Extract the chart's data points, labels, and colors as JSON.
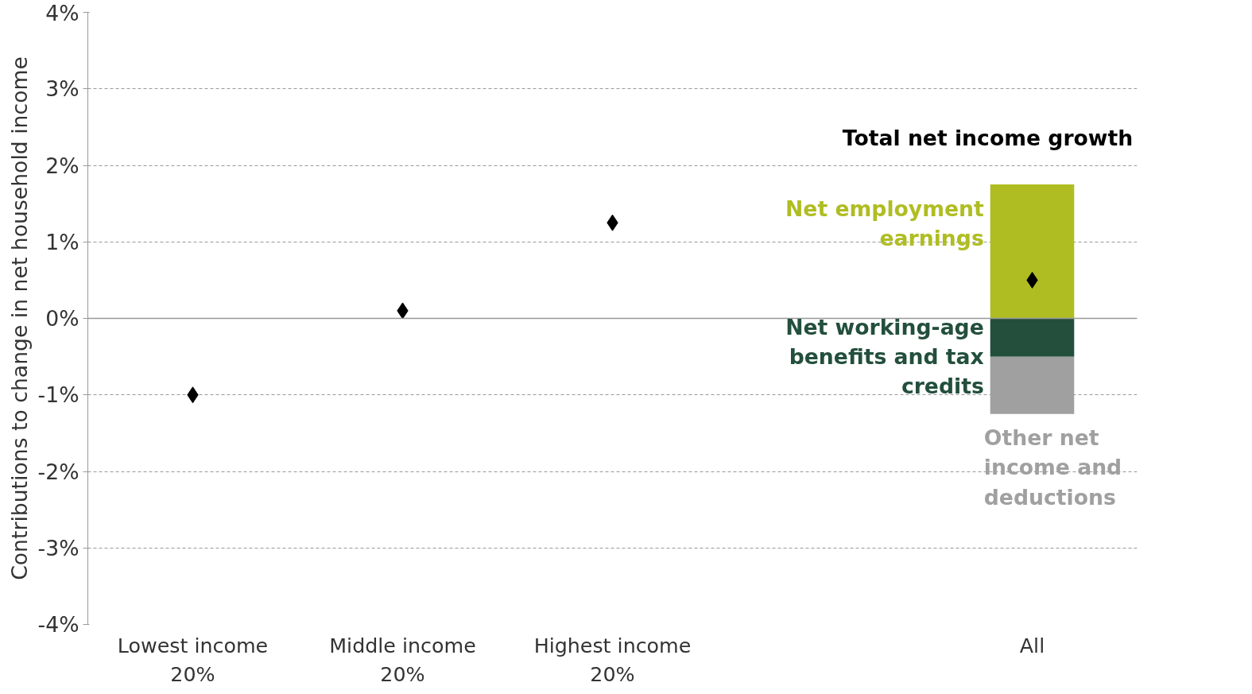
{
  "chart_data": {
    "type": "bar",
    "stacked": true,
    "ylabel": "Contributions to change in net household income",
    "categories": [
      "Lowest income 20%",
      "Middle income 20%",
      "Highest income 20%",
      null,
      "All"
    ],
    "series": [
      {
        "name": "Net employment earnings",
        "color": "#afbd22",
        "values": [
          null,
          null,
          null,
          null,
          1.75
        ]
      },
      {
        "name": "Net working-age benefits and tax credits",
        "color": "#234f3c",
        "values": [
          null,
          null,
          null,
          null,
          -0.5
        ]
      },
      {
        "name": "Other net income and deductions",
        "color": "#a0a0a0",
        "values": [
          null,
          null,
          null,
          null,
          -0.75
        ]
      },
      {
        "name": "Total net income growth",
        "color": "#000000",
        "type": "scatter",
        "marker": "diamond",
        "values": [
          -1.0,
          0.1,
          1.25,
          null,
          0.5
        ]
      }
    ],
    "ylim": [
      -4,
      4
    ],
    "yticks": [
      {
        "value": -4,
        "label": "-4%"
      },
      {
        "value": -3,
        "label": "-3%"
      },
      {
        "value": -2,
        "label": "-2%"
      },
      {
        "value": -1,
        "label": "-1%"
      },
      {
        "value": 0,
        "label": "0%"
      },
      {
        "value": 1,
        "label": "1%"
      },
      {
        "value": 2,
        "label": "2%"
      },
      {
        "value": 3,
        "label": "3%"
      },
      {
        "value": 4,
        "label": "4%"
      }
    ],
    "grid": "y"
  }
}
